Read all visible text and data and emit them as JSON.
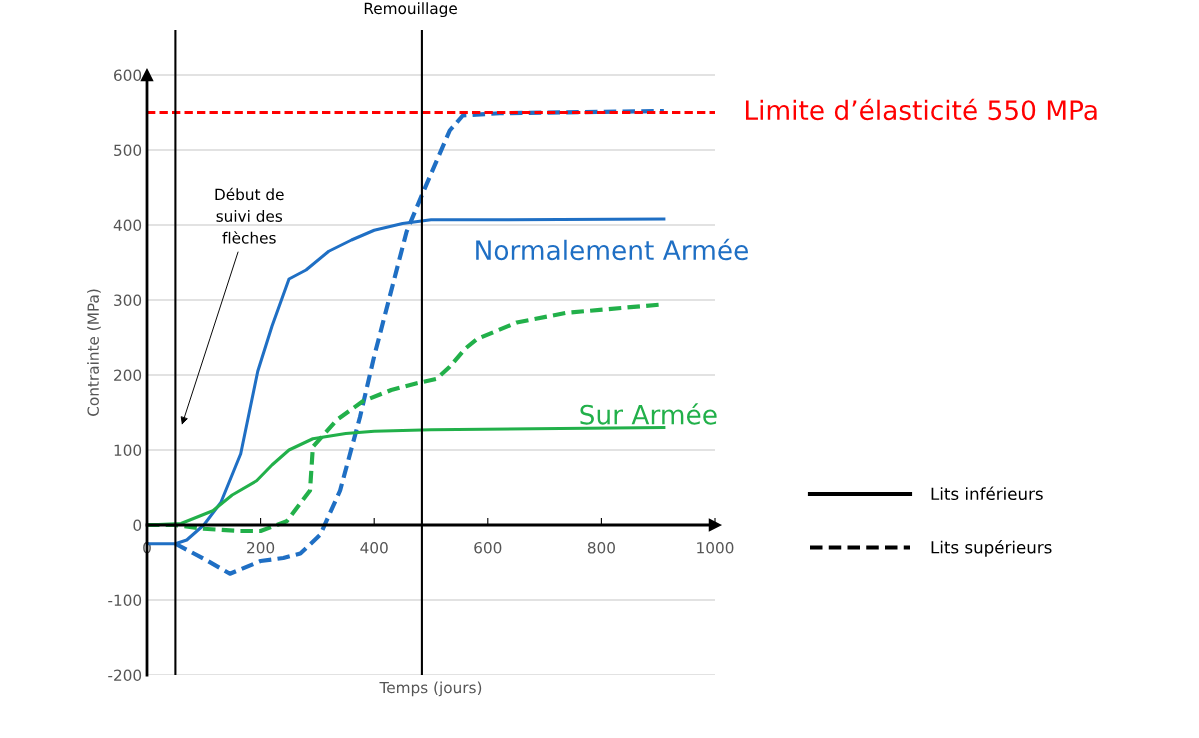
{
  "chart_data": {
    "type": "line",
    "xlabel": "Temps (jours)",
    "ylabel": "Contrainte (MPa)",
    "xlim": [
      0,
      1000
    ],
    "ylim": [
      -200,
      660
    ],
    "xticks": [
      0,
      200,
      400,
      600,
      800,
      1000
    ],
    "yticks": [
      -200,
      -100,
      0,
      100,
      200,
      300,
      400,
      500,
      600
    ],
    "grid": "y",
    "legend": "right",
    "marker": "none",
    "series": [
      {
        "color": "#1f6fc4",
        "line_style": "solid",
        "x": [
          0,
          50,
          70,
          100,
          130,
          165,
          195,
          220,
          250,
          280,
          320,
          360,
          400,
          450,
          500,
          600,
          910
        ],
        "values": [
          -25,
          -25,
          -20,
          0,
          30,
          95,
          205,
          265,
          328,
          340,
          365,
          380,
          393,
          402,
          407,
          407,
          408
        ]
      },
      {
        "color": "#1f6fc4",
        "line_style": "dashed",
        "x": [
          50,
          100,
          146,
          200,
          240,
          270,
          305,
          340,
          375,
          400,
          457,
          484,
          533,
          556,
          621,
          910
        ],
        "values": [
          -25,
          -45,
          -65,
          -48,
          -44,
          -38,
          -13,
          46,
          144,
          225,
          391,
          440,
          526,
          546,
          549,
          552
        ]
      },
      {
        "color": "#22b04a",
        "line_style": "solid",
        "x": [
          0,
          60,
          116,
          150,
          193,
          220,
          250,
          292,
          350,
          400,
          500,
          910
        ],
        "values": [
          0,
          2,
          19,
          40,
          59,
          80,
          100,
          115,
          122,
          125,
          127,
          130
        ]
      },
      {
        "color": "#22b04a",
        "line_style": "dashed",
        "x": [
          0,
          50,
          100,
          164,
          200,
          246,
          287,
          292,
          334,
          380,
          430,
          475,
          510,
          533,
          560,
          581,
          651,
          739,
          905
        ],
        "values": [
          0,
          0,
          -5,
          -8,
          -8,
          5,
          46,
          104,
          140,
          165,
          180,
          189,
          195,
          211,
          235,
          248,
          270,
          283,
          294
        ]
      }
    ],
    "ref_lines": [
      {
        "axis": "y",
        "value": 550,
        "label": "Limite d’élasticité 550 MPa",
        "color": "#ff0000",
        "line_style": "dashed"
      },
      {
        "axis": "x",
        "value": 50,
        "label": "Début de\nsuivi des\nflèches",
        "color": "#000000",
        "line_style": "solid"
      },
      {
        "axis": "x",
        "value": 484,
        "label": "Remouillage",
        "color": "#000000",
        "line_style": "solid"
      }
    ],
    "annotations": [
      "Normalement Armée",
      "Sur Armée",
      "Lits inférieurs",
      "Lits supérieurs"
    ]
  }
}
